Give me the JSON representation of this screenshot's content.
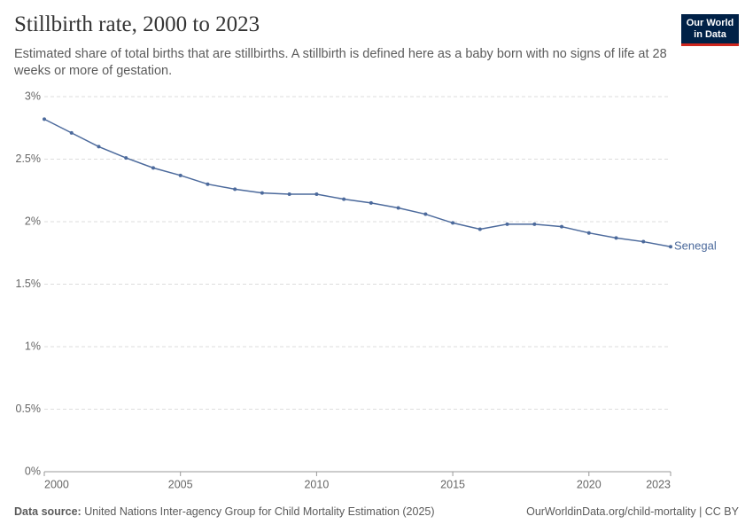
{
  "chart_data": {
    "type": "line",
    "title": "Stillbirth rate, 2000 to 2023",
    "subtitle": "Estimated share of total births that are stillbirths. A stillbirth is defined here as a baby born with no signs of life at 28 weeks or more of gestation.",
    "logo": [
      "Our World",
      "in Data"
    ],
    "source_label": "Data source:",
    "source": "United Nations Inter-agency Group for Child Mortality Estimation (2025)",
    "credit": "OurWorldinData.org/child-mortality | CC BY",
    "x": [
      2000,
      2001,
      2002,
      2003,
      2004,
      2005,
      2006,
      2007,
      2008,
      2009,
      2010,
      2011,
      2012,
      2013,
      2014,
      2015,
      2016,
      2017,
      2018,
      2019,
      2020,
      2021,
      2022,
      2023
    ],
    "series": [
      {
        "name": "Senegal",
        "color": "#4c6a9c",
        "values": [
          2.82,
          2.71,
          2.6,
          2.51,
          2.43,
          2.37,
          2.3,
          2.26,
          2.23,
          2.22,
          2.22,
          2.18,
          2.15,
          2.11,
          2.06,
          1.99,
          1.94,
          1.98,
          1.98,
          1.96,
          1.91,
          1.87,
          1.84,
          1.8
        ]
      }
    ],
    "xlim": [
      2000,
      2023
    ],
    "xticks": [
      2000,
      2005,
      2010,
      2015,
      2020,
      2023
    ],
    "ylim": [
      0,
      3
    ],
    "yticks": [
      {
        "value": 0,
        "label": "0%"
      },
      {
        "value": 0.5,
        "label": "0.5%"
      },
      {
        "value": 1,
        "label": "1%"
      },
      {
        "value": 1.5,
        "label": "1.5%"
      },
      {
        "value": 2,
        "label": "2%"
      },
      {
        "value": 2.5,
        "label": "2.5%"
      },
      {
        "value": 3,
        "label": "3%"
      }
    ],
    "grid": true
  }
}
